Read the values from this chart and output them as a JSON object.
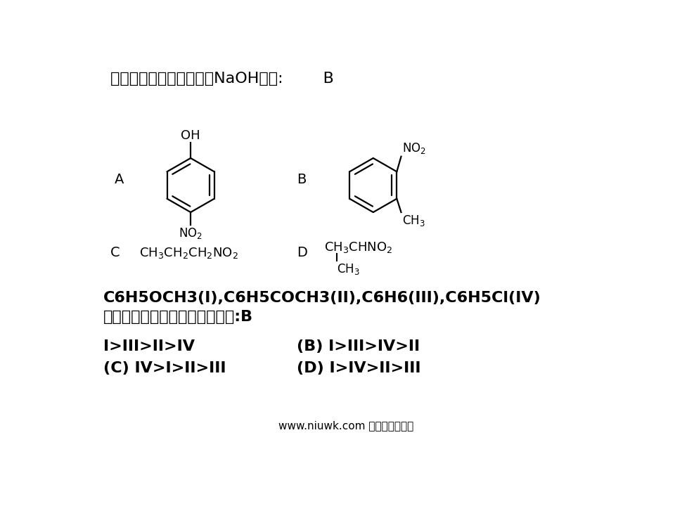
{
  "title_text1": "下列哪种化合物不能溶于",
  "title_naoh": "NaOH",
  "title_text2": "溶液:        B",
  "title_fontsize": 16,
  "label_fontsize": 14,
  "formula_fontsize": 13,
  "section2_line1": "C6H5OCH3(I),C6H5COCH3(II),C6H6(III),C6H5Cl(IV)",
  "section2_line2_cn": "四种化合物硝化反应速率次序为:",
  "section2_line2_b": "B",
  "ans_A": "I>III>II>IV",
  "ans_B": "(B) I>III>IV>II",
  "ans_C": "(C) IV>I>II>III",
  "ans_D": "(D) I>IV>II>III",
  "footer_en": "www.niuwk.com ",
  "footer_cn": "牛牛文库文档分",
  "footer_cn2": "享"
}
